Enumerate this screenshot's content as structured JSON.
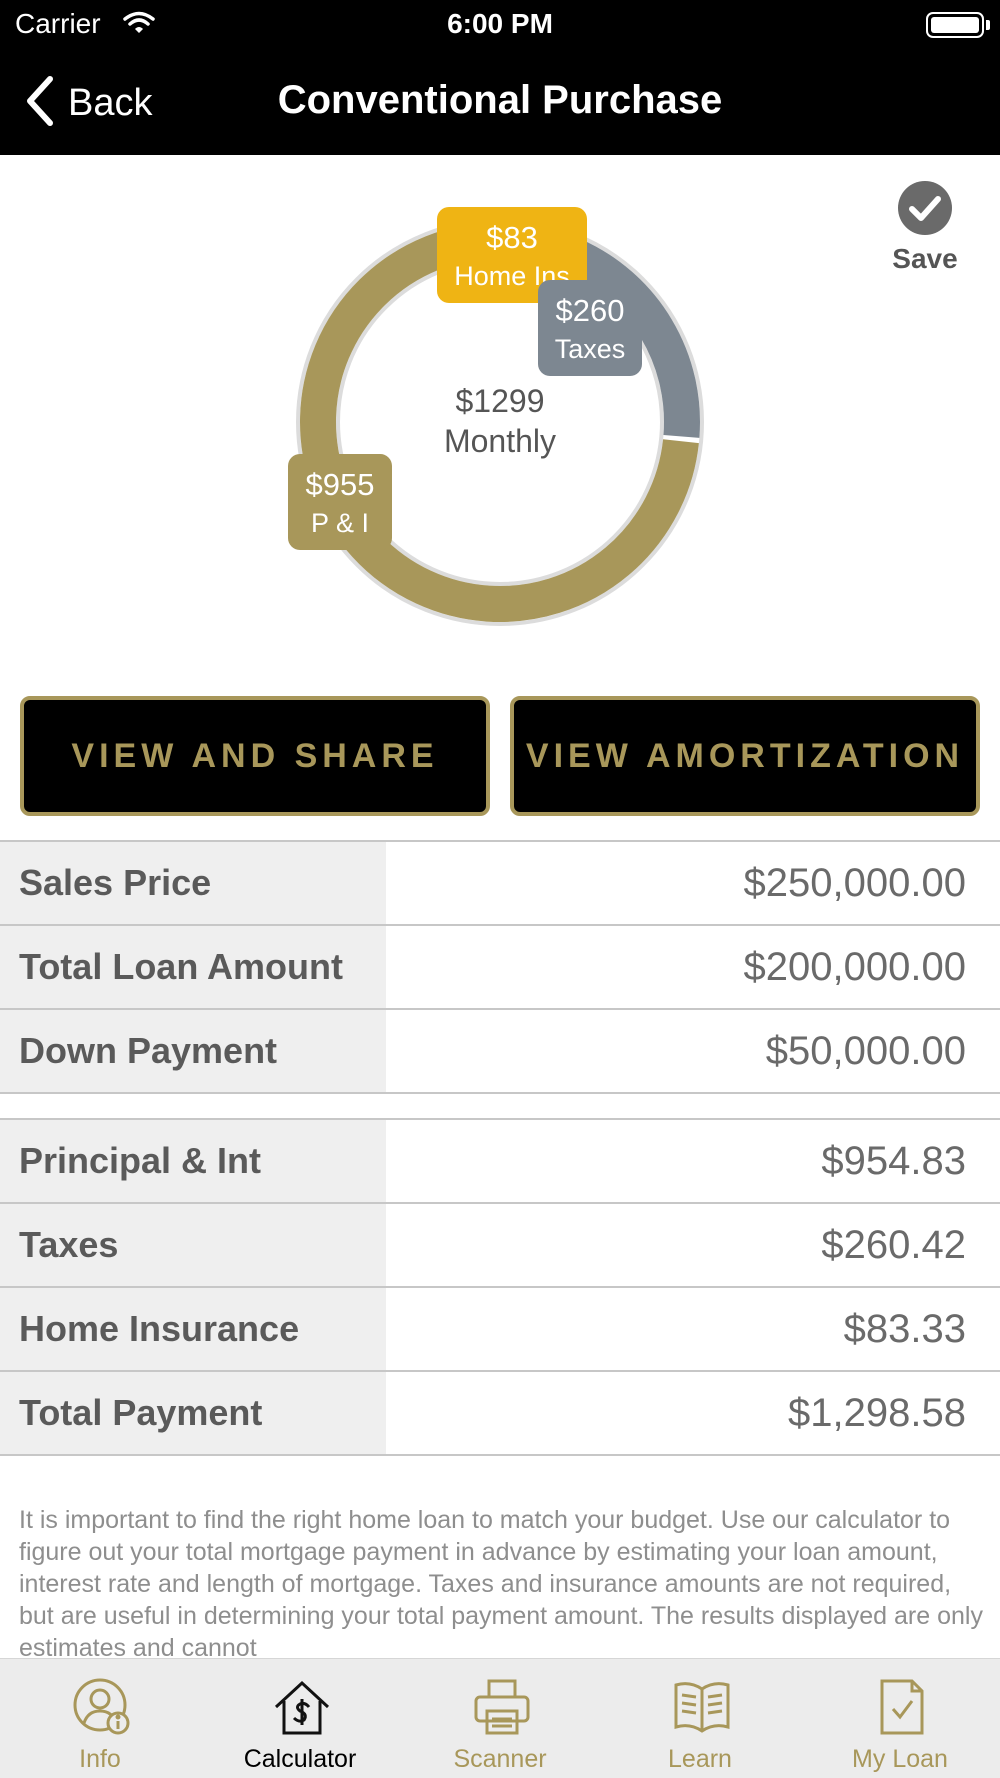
{
  "status_bar": {
    "carrier": "Carrier",
    "time": "6:00 PM"
  },
  "nav": {
    "back_label": "Back",
    "title": "Conventional Purchase"
  },
  "save_label": "Save",
  "chart": {
    "center_amount": "$1299",
    "center_label": "Monthly",
    "segments": [
      {
        "amount": "$83",
        "label": "Home Ins",
        "value": 83.33,
        "color": "#efb414"
      },
      {
        "amount": "$260",
        "label": "Taxes",
        "value": 260.42,
        "color": "#7d8791"
      },
      {
        "amount": "$955",
        "label": "P & I",
        "value": 954.83,
        "color": "#a8975a"
      }
    ]
  },
  "buttons": {
    "view_share": "VIEW AND SHARE",
    "view_amortization": "VIEW AMORTIZATION"
  },
  "loan_table": [
    {
      "label": "Sales Price",
      "value": "$250,000.00"
    },
    {
      "label": "Total Loan Amount",
      "value": "$200,000.00"
    },
    {
      "label": "Down Payment",
      "value": "$50,000.00"
    }
  ],
  "payment_table": [
    {
      "label": "Principal & Int",
      "value": "$954.83"
    },
    {
      "label": "Taxes",
      "value": "$260.42"
    },
    {
      "label": "Home Insurance",
      "value": "$83.33"
    },
    {
      "label": "Total Payment",
      "value": "$1,298.58"
    }
  ],
  "disclaimer": "It is important to find the right home loan to match your budget. Use our calculator to figure out your total mortgage payment in advance by estimating your loan amount, interest rate and length of mortgage. Taxes and insurance amounts are not required, but are useful in determining your total payment amount.  The results displayed are only estimates and cannot",
  "tabs": [
    {
      "label": "Info",
      "icon": "person-info-icon",
      "active": false
    },
    {
      "label": "Calculator",
      "icon": "house-dollar-icon",
      "active": true
    },
    {
      "label": "Scanner",
      "icon": "printer-icon",
      "active": false
    },
    {
      "label": "Learn",
      "icon": "open-book-icon",
      "active": false
    },
    {
      "label": "My Loan",
      "icon": "document-check-icon",
      "active": false
    }
  ],
  "colors": {
    "gold": "#a8975a",
    "accent_yellow": "#efb414",
    "slate": "#7d8791",
    "nav_bg": "#000000"
  }
}
